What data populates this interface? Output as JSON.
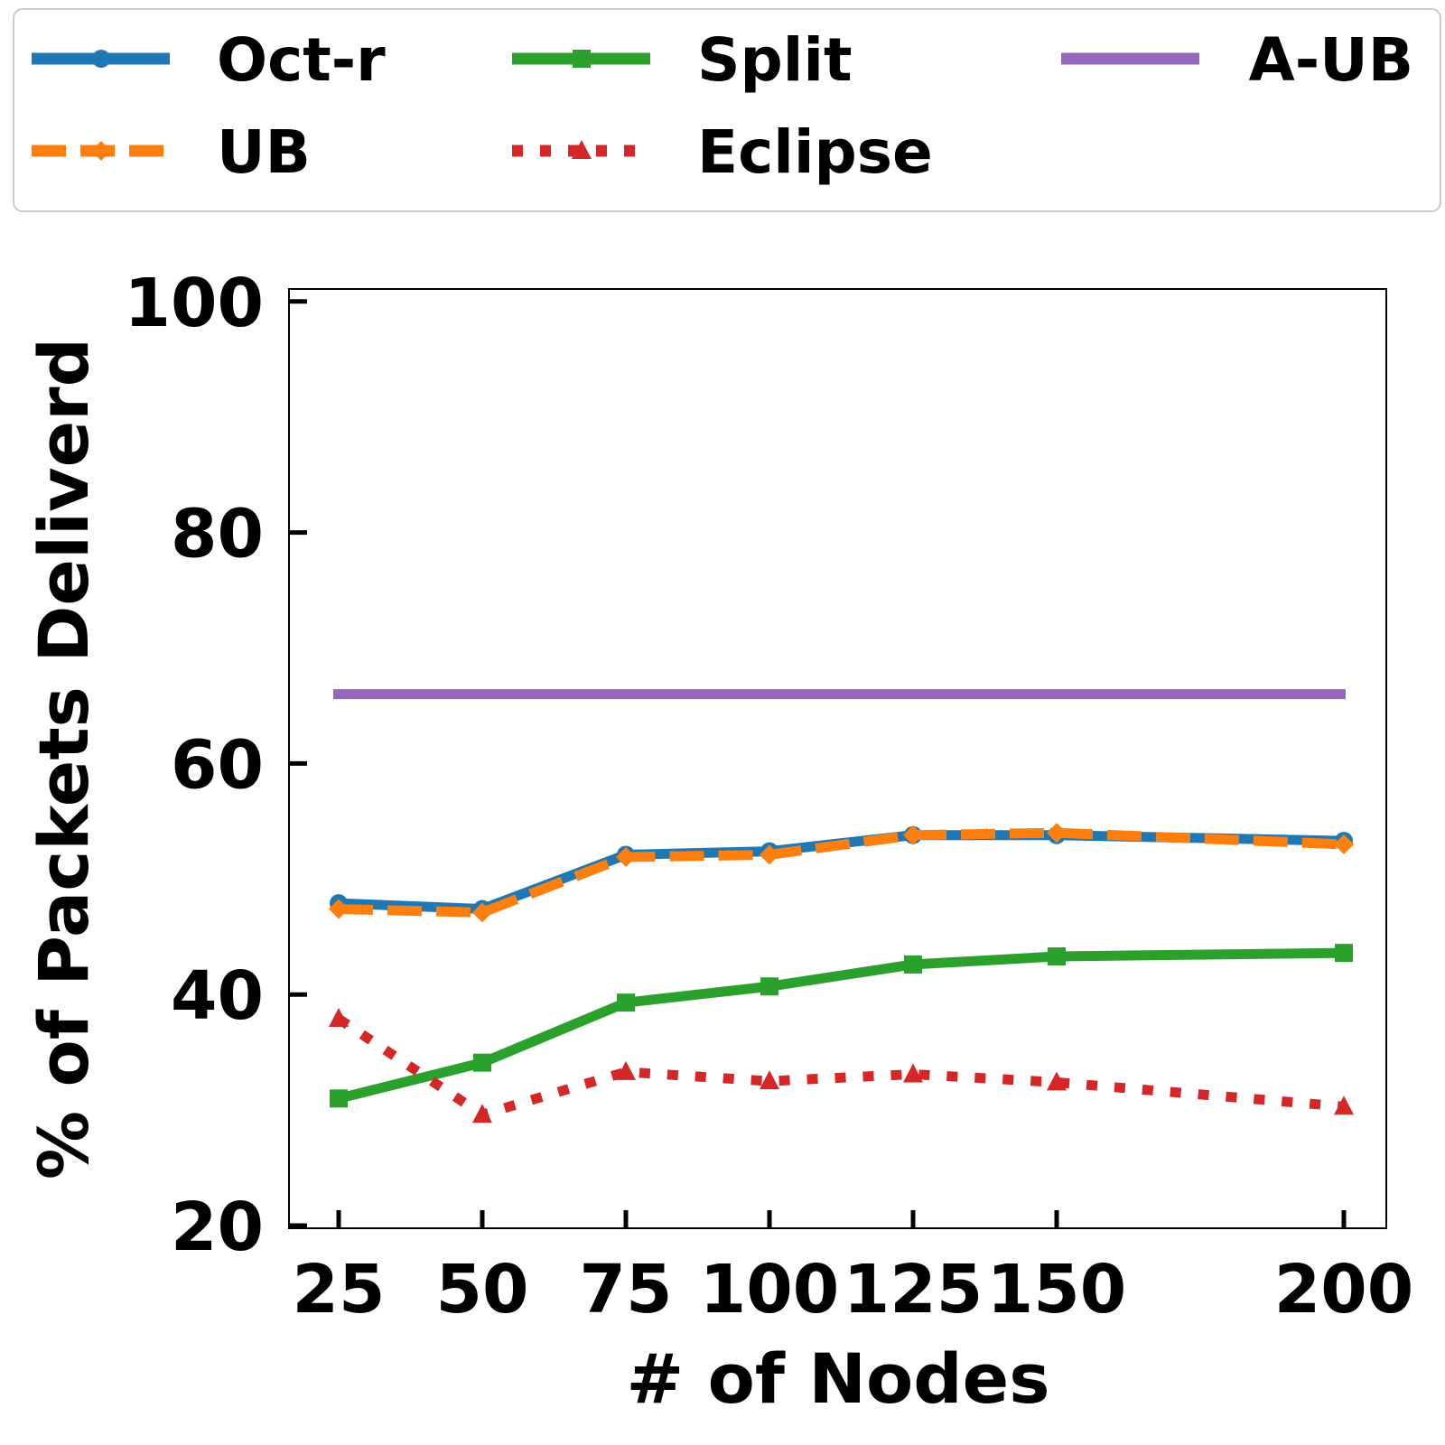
{
  "chart_data": {
    "type": "line",
    "title": "",
    "xlabel": "# of Nodes",
    "ylabel": "% of Packets Deliverd",
    "x": [
      25,
      50,
      75,
      100,
      125,
      150,
      200
    ],
    "x_tick_labels": [
      "25",
      "50",
      "75",
      "100",
      "125",
      "150",
      "200"
    ],
    "ylim": [
      20,
      101
    ],
    "y_ticks": [
      20,
      40,
      60,
      80,
      100
    ],
    "y_tick_labels": [
      "20",
      "40",
      "60",
      "80",
      "100"
    ],
    "grid": false,
    "legend_position": "top (outside plot, 3 columns)",
    "series": [
      {
        "name": "Oct-r",
        "color": "#1f77b4",
        "style": "solid",
        "marker": "circle",
        "values": [
          47.9,
          47.4,
          52.1,
          52.4,
          53.8,
          53.8,
          53.3
        ]
      },
      {
        "name": "UB",
        "color": "#ff7f0e",
        "style": "dashed",
        "marker": "diamond",
        "values": [
          47.4,
          47.1,
          51.9,
          52.1,
          53.8,
          54.0,
          53.0
        ]
      },
      {
        "name": "Split",
        "color": "#2ca02c",
        "style": "solid",
        "marker": "square",
        "values": [
          31.0,
          34.1,
          39.3,
          40.7,
          42.6,
          43.3,
          43.6
        ]
      },
      {
        "name": "Eclipse",
        "color": "#d62728",
        "style": "dotted",
        "marker": "triangle",
        "values": [
          37.9,
          29.6,
          33.3,
          32.5,
          33.1,
          32.4,
          30.3
        ]
      },
      {
        "name": "A-UB",
        "color": "#9467bd",
        "style": "solid",
        "marker": "none",
        "values": [
          66.0,
          66.0,
          66.0,
          66.0,
          66.0,
          66.0,
          66.0
        ]
      }
    ]
  }
}
